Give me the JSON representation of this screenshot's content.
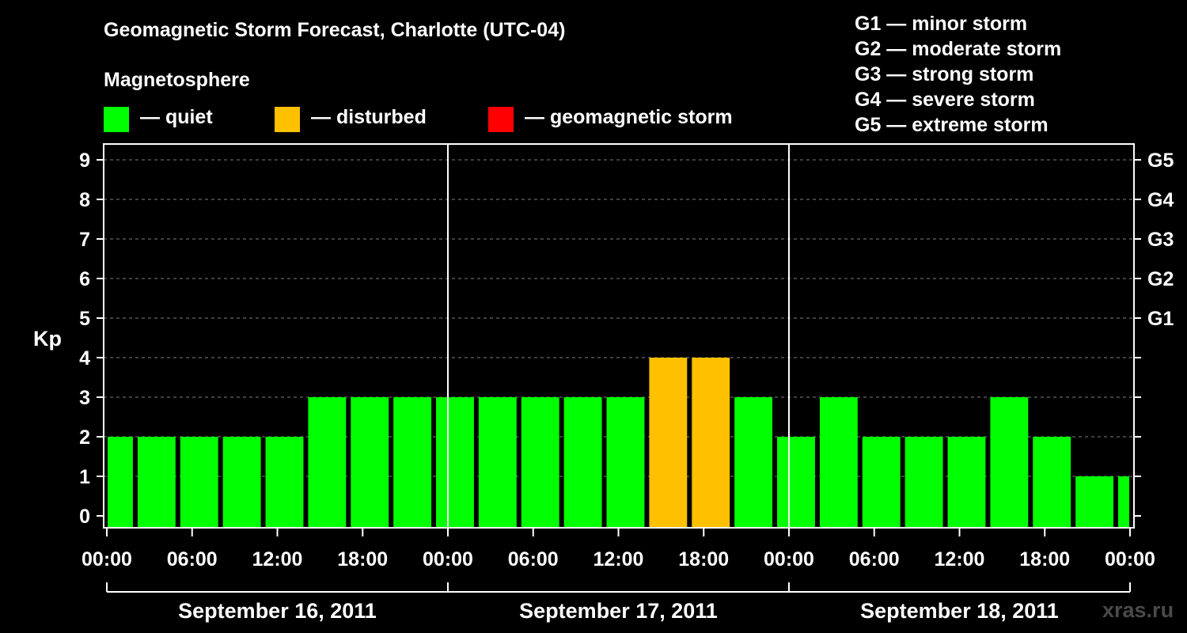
{
  "title": "Geomagnetic Storm Forecast, Charlotte (UTC-04)",
  "subtitle": "Magnetosphere",
  "legend": [
    {
      "label": "— quiet",
      "color": "#00ff00"
    },
    {
      "label": "— disturbed",
      "color": "#ffc000"
    },
    {
      "label": "— geomagnetic storm",
      "color": "#ff0000"
    }
  ],
  "g_levels": [
    "G1 — minor storm",
    "G2 — moderate storm",
    "G3 — strong storm",
    "G4 — severe storm",
    "G5 — extreme storm"
  ],
  "watermark": "xras.ru",
  "chart_data": {
    "type": "bar",
    "ylabel": "Kp",
    "ylim": [
      0,
      9
    ],
    "yticks": [
      "0",
      "1",
      "2",
      "3",
      "4",
      "5",
      "6",
      "7",
      "8",
      "9"
    ],
    "right_ticks": [
      {
        "kp": 5,
        "label": "G1"
      },
      {
        "kp": 6,
        "label": "G2"
      },
      {
        "kp": 7,
        "label": "G3"
      },
      {
        "kp": 8,
        "label": "G4"
      },
      {
        "kp": 9,
        "label": "G5"
      }
    ],
    "x_range_hours": [
      0,
      72
    ],
    "xticks": [
      {
        "hour": 0,
        "label": "00:00"
      },
      {
        "hour": 6,
        "label": "06:00"
      },
      {
        "hour": 12,
        "label": "12:00"
      },
      {
        "hour": 18,
        "label": "18:00"
      },
      {
        "hour": 24,
        "label": "00:00"
      },
      {
        "hour": 30,
        "label": "06:00"
      },
      {
        "hour": 36,
        "label": "12:00"
      },
      {
        "hour": 42,
        "label": "18:00"
      },
      {
        "hour": 48,
        "label": "00:00"
      },
      {
        "hour": 54,
        "label": "06:00"
      },
      {
        "hour": 60,
        "label": "12:00"
      },
      {
        "hour": 66,
        "label": "18:00"
      },
      {
        "hour": 72,
        "label": "00:00"
      }
    ],
    "days": [
      "September 16, 2011",
      "September 17, 2011",
      "September 18, 2011"
    ],
    "colors": {
      "quiet": "#00ff00",
      "disturbed": "#ffc000",
      "storm": "#ff0000"
    },
    "bars": [
      {
        "start": 0,
        "end": 2,
        "kp": 2
      },
      {
        "start": 2,
        "end": 5,
        "kp": 2
      },
      {
        "start": 5,
        "end": 8,
        "kp": 2
      },
      {
        "start": 8,
        "end": 11,
        "kp": 2
      },
      {
        "start": 11,
        "end": 14,
        "kp": 2
      },
      {
        "start": 14,
        "end": 17,
        "kp": 3
      },
      {
        "start": 17,
        "end": 20,
        "kp": 3
      },
      {
        "start": 20,
        "end": 23,
        "kp": 3
      },
      {
        "start": 23,
        "end": 26,
        "kp": 3
      },
      {
        "start": 26,
        "end": 29,
        "kp": 3
      },
      {
        "start": 29,
        "end": 32,
        "kp": 3
      },
      {
        "start": 32,
        "end": 35,
        "kp": 3
      },
      {
        "start": 35,
        "end": 38,
        "kp": 3
      },
      {
        "start": 38,
        "end": 41,
        "kp": 4
      },
      {
        "start": 41,
        "end": 44,
        "kp": 4
      },
      {
        "start": 44,
        "end": 47,
        "kp": 3
      },
      {
        "start": 47,
        "end": 50,
        "kp": 2
      },
      {
        "start": 50,
        "end": 53,
        "kp": 3
      },
      {
        "start": 53,
        "end": 56,
        "kp": 2
      },
      {
        "start": 56,
        "end": 59,
        "kp": 2
      },
      {
        "start": 59,
        "end": 62,
        "kp": 2
      },
      {
        "start": 62,
        "end": 65,
        "kp": 3
      },
      {
        "start": 65,
        "end": 68,
        "kp": 2
      },
      {
        "start": 68,
        "end": 71,
        "kp": 1
      },
      {
        "start": 71,
        "end": 72,
        "kp": 1
      }
    ]
  }
}
